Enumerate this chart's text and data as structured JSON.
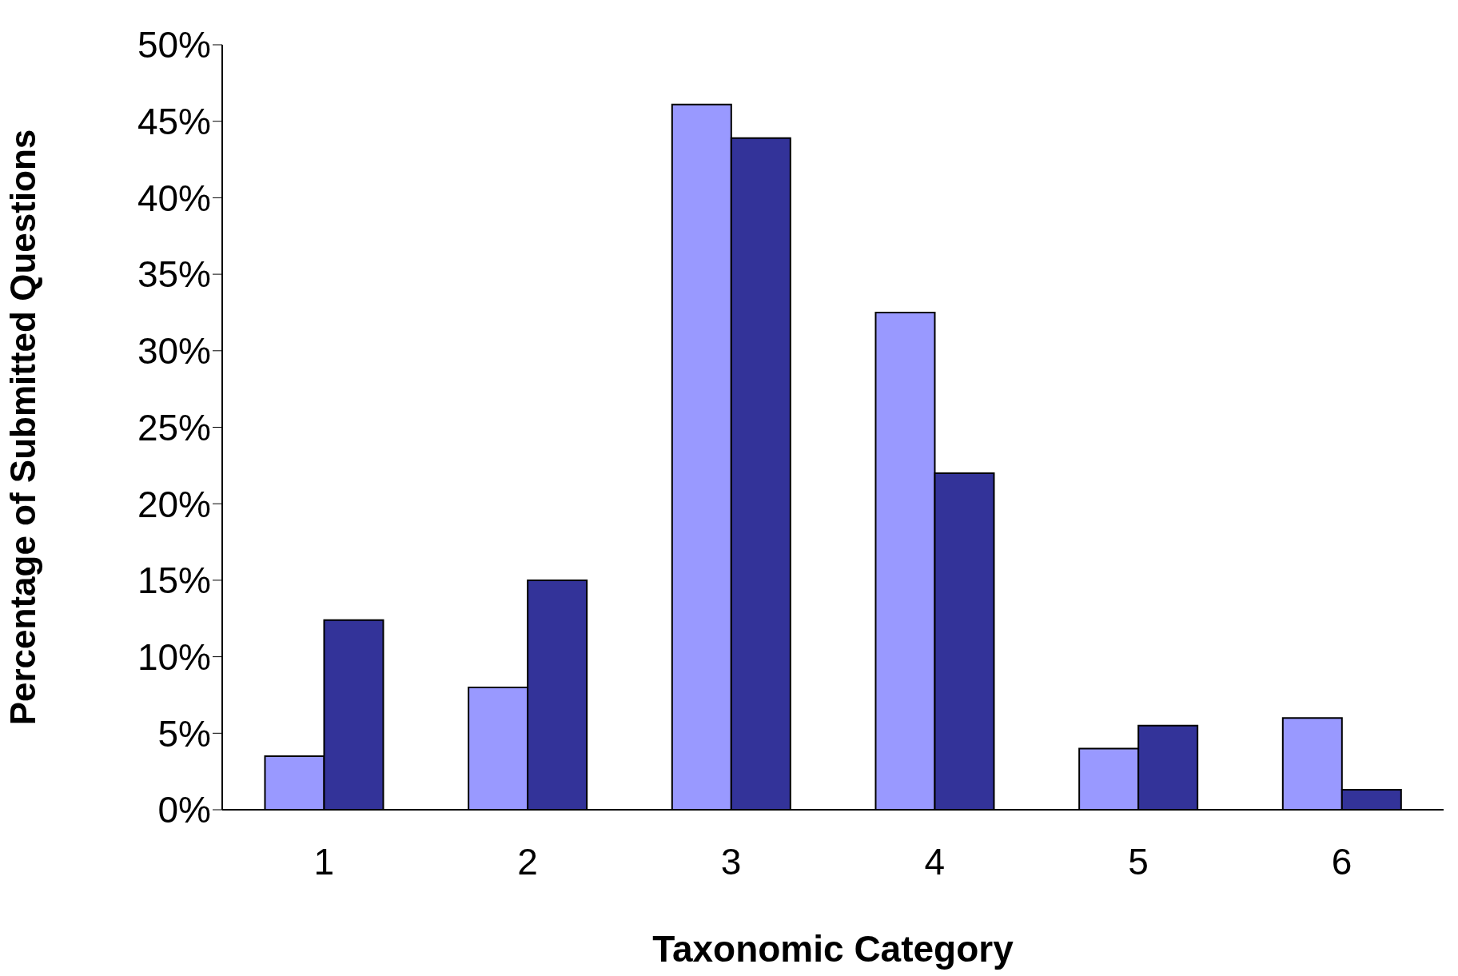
{
  "chart_data": {
    "type": "bar",
    "xlabel": "Taxonomic Category",
    "ylabel": "Percentage of Submitted Questions",
    "categories": [
      "1",
      "2",
      "3",
      "4",
      "5",
      "6"
    ],
    "series": [
      {
        "color": "#9999ff",
        "values": [
          3.5,
          8,
          46.1,
          32.5,
          4,
          6
        ]
      },
      {
        "color": "#333399",
        "values": [
          12.4,
          15,
          43.9,
          22,
          5.5,
          1.3
        ]
      }
    ],
    "ylim": [
      0,
      50
    ],
    "yticks": [
      {
        "value": 0,
        "label": "0%"
      },
      {
        "value": 5,
        "label": "5%"
      },
      {
        "value": 10,
        "label": "10%"
      },
      {
        "value": 15,
        "label": "15%"
      },
      {
        "value": 20,
        "label": "20%"
      },
      {
        "value": 25,
        "label": "25%"
      },
      {
        "value": 30,
        "label": "30%"
      },
      {
        "value": 35,
        "label": "35%"
      },
      {
        "value": 40,
        "label": "40%"
      },
      {
        "value": 45,
        "label": "45%"
      },
      {
        "value": 50,
        "label": "50%"
      }
    ],
    "grid": false,
    "legend": false
  }
}
